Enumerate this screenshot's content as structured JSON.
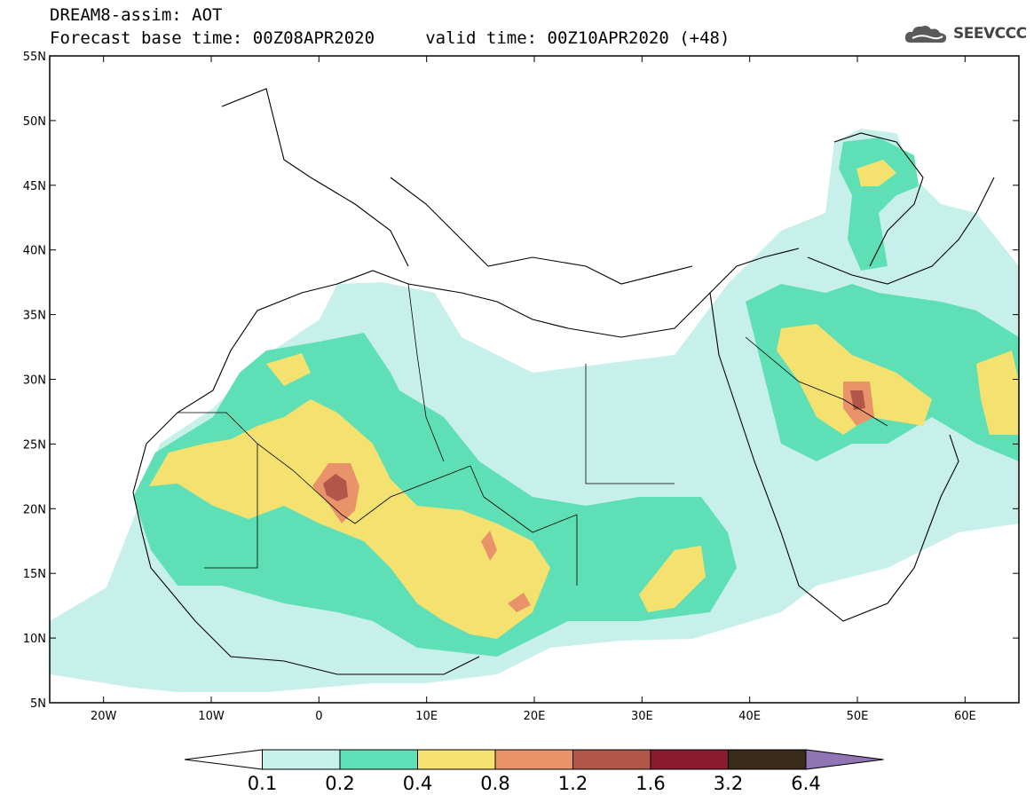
{
  "header": {
    "title_line1": "DREAM8-assim: AOT",
    "title_line2": "Forecast base time: 00Z08APR2020     valid time: 00Z10APR2020 (+48)"
  },
  "logo": {
    "text": "SEEVCCC",
    "icon": "cloud-icon"
  },
  "map": {
    "lon_range": [
      -25,
      65
    ],
    "lat_range": [
      5,
      55
    ],
    "lat_ticks": [
      {
        "value": 55,
        "label": "55N"
      },
      {
        "value": 50,
        "label": "50N"
      },
      {
        "value": 45,
        "label": "45N"
      },
      {
        "value": 40,
        "label": "40N"
      },
      {
        "value": 35,
        "label": "35N"
      },
      {
        "value": 30,
        "label": "30N"
      },
      {
        "value": 25,
        "label": "25N"
      },
      {
        "value": 20,
        "label": "20N"
      },
      {
        "value": 15,
        "label": "15N"
      },
      {
        "value": 10,
        "label": "10N"
      },
      {
        "value": 5,
        "label": "5N"
      }
    ],
    "lon_ticks": [
      {
        "value": -20,
        "label": "20W"
      },
      {
        "value": -10,
        "label": "10W"
      },
      {
        "value": 0,
        "label": "0"
      },
      {
        "value": 10,
        "label": "10E"
      },
      {
        "value": 20,
        "label": "20E"
      },
      {
        "value": 30,
        "label": "30E"
      },
      {
        "value": 40,
        "label": "40E"
      },
      {
        "value": 50,
        "label": "50E"
      },
      {
        "value": 60,
        "label": "60E"
      }
    ]
  },
  "colorbar": {
    "labels": [
      "0.1",
      "0.2",
      "0.4",
      "0.8",
      "1.2",
      "1.6",
      "3.2",
      "6.4"
    ],
    "colors": [
      "#c8f0ea",
      "#5fdfb5",
      "#f4e170",
      "#e8936a",
      "#b2564a",
      "#8a1a2e",
      "#3a2a1a",
      "#9075b5"
    ]
  }
}
